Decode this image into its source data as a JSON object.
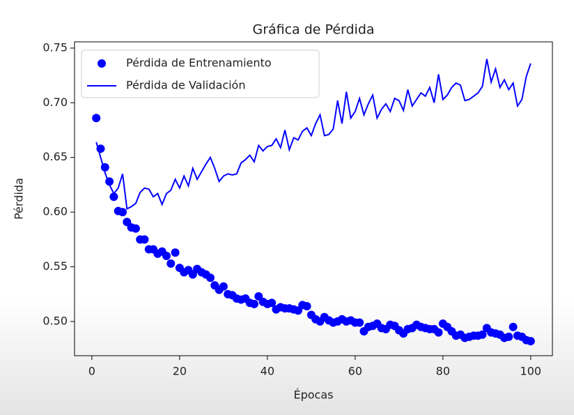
{
  "chart_data": {
    "type": "scatter-line",
    "title": "Gráfica de Pérdida",
    "x_label": "Épocas",
    "y_label": "Pérdida",
    "x": [
      1,
      2,
      3,
      4,
      5,
      6,
      7,
      8,
      9,
      10,
      11,
      12,
      13,
      14,
      15,
      16,
      17,
      18,
      19,
      20,
      21,
      22,
      23,
      24,
      25,
      26,
      27,
      28,
      29,
      30,
      31,
      32,
      33,
      34,
      35,
      36,
      37,
      38,
      39,
      40,
      41,
      42,
      43,
      44,
      45,
      46,
      47,
      48,
      49,
      50,
      51,
      52,
      53,
      54,
      55,
      56,
      57,
      58,
      59,
      60,
      61,
      62,
      63,
      64,
      65,
      66,
      67,
      68,
      69,
      70,
      71,
      72,
      73,
      74,
      75,
      76,
      77,
      78,
      79,
      80,
      81,
      82,
      83,
      84,
      85,
      86,
      87,
      88,
      89,
      90,
      91,
      92,
      93,
      94,
      95,
      96,
      97,
      98,
      99,
      100
    ],
    "series": [
      {
        "name": "Pérdida de Entrenamiento",
        "color": "#0000ff",
        "style": "dots",
        "values": [
          0.686,
          0.658,
          0.641,
          0.628,
          0.614,
          0.601,
          0.6,
          0.591,
          0.586,
          0.585,
          0.575,
          0.575,
          0.566,
          0.566,
          0.562,
          0.564,
          0.56,
          0.553,
          0.563,
          0.549,
          0.545,
          0.547,
          0.543,
          0.548,
          0.545,
          0.543,
          0.54,
          0.533,
          0.529,
          0.532,
          0.525,
          0.524,
          0.521,
          0.52,
          0.521,
          0.517,
          0.516,
          0.523,
          0.518,
          0.516,
          0.517,
          0.511,
          0.513,
          0.512,
          0.512,
          0.511,
          0.51,
          0.515,
          0.514,
          0.506,
          0.502,
          0.5,
          0.504,
          0.501,
          0.499,
          0.5,
          0.502,
          0.5,
          0.501,
          0.499,
          0.499,
          0.491,
          0.495,
          0.496,
          0.498,
          0.494,
          0.493,
          0.497,
          0.496,
          0.492,
          0.489,
          0.493,
          0.494,
          0.497,
          0.495,
          0.494,
          0.493,
          0.493,
          0.49,
          0.498,
          0.495,
          0.491,
          0.487,
          0.488,
          0.485,
          0.486,
          0.487,
          0.487,
          0.488,
          0.494,
          0.49,
          0.489,
          0.488,
          0.485,
          0.486,
          0.495,
          0.487,
          0.486,
          0.483,
          0.482
        ]
      },
      {
        "name": "Pérdida de Validación",
        "color": "#0000ff",
        "style": "line",
        "values": [
          0.664,
          0.65,
          0.636,
          0.625,
          0.617,
          0.622,
          0.635,
          0.603,
          0.605,
          0.608,
          0.618,
          0.622,
          0.621,
          0.614,
          0.617,
          0.607,
          0.617,
          0.62,
          0.63,
          0.622,
          0.633,
          0.624,
          0.64,
          0.63,
          0.637,
          0.644,
          0.65,
          0.64,
          0.628,
          0.633,
          0.635,
          0.634,
          0.635,
          0.645,
          0.648,
          0.652,
          0.646,
          0.661,
          0.656,
          0.66,
          0.661,
          0.667,
          0.659,
          0.675,
          0.657,
          0.668,
          0.666,
          0.674,
          0.677,
          0.67,
          0.681,
          0.689,
          0.67,
          0.671,
          0.676,
          0.702,
          0.681,
          0.71,
          0.686,
          0.692,
          0.704,
          0.689,
          0.699,
          0.707,
          0.686,
          0.694,
          0.699,
          0.692,
          0.704,
          0.702,
          0.693,
          0.712,
          0.697,
          0.703,
          0.709,
          0.706,
          0.714,
          0.7,
          0.726,
          0.703,
          0.707,
          0.714,
          0.718,
          0.716,
          0.702,
          0.703,
          0.706,
          0.709,
          0.715,
          0.74,
          0.719,
          0.731,
          0.714,
          0.721,
          0.712,
          0.718,
          0.697,
          0.703,
          0.724,
          0.736
        ]
      }
    ],
    "xlim": [
      -3.95,
      104.95
    ],
    "ylim": [
      0.4687,
      0.7557
    ],
    "xticks": [
      0,
      20,
      40,
      60,
      80,
      100
    ],
    "yticks": [
      {
        "value": 0.5,
        "label": "0.50"
      },
      0.55,
      {
        "value": 0.6,
        "label": "0.60"
      },
      0.65,
      {
        "value": 0.7,
        "label": "0.70"
      },
      0.75
    ],
    "grid": false,
    "legend": "upper-left"
  }
}
